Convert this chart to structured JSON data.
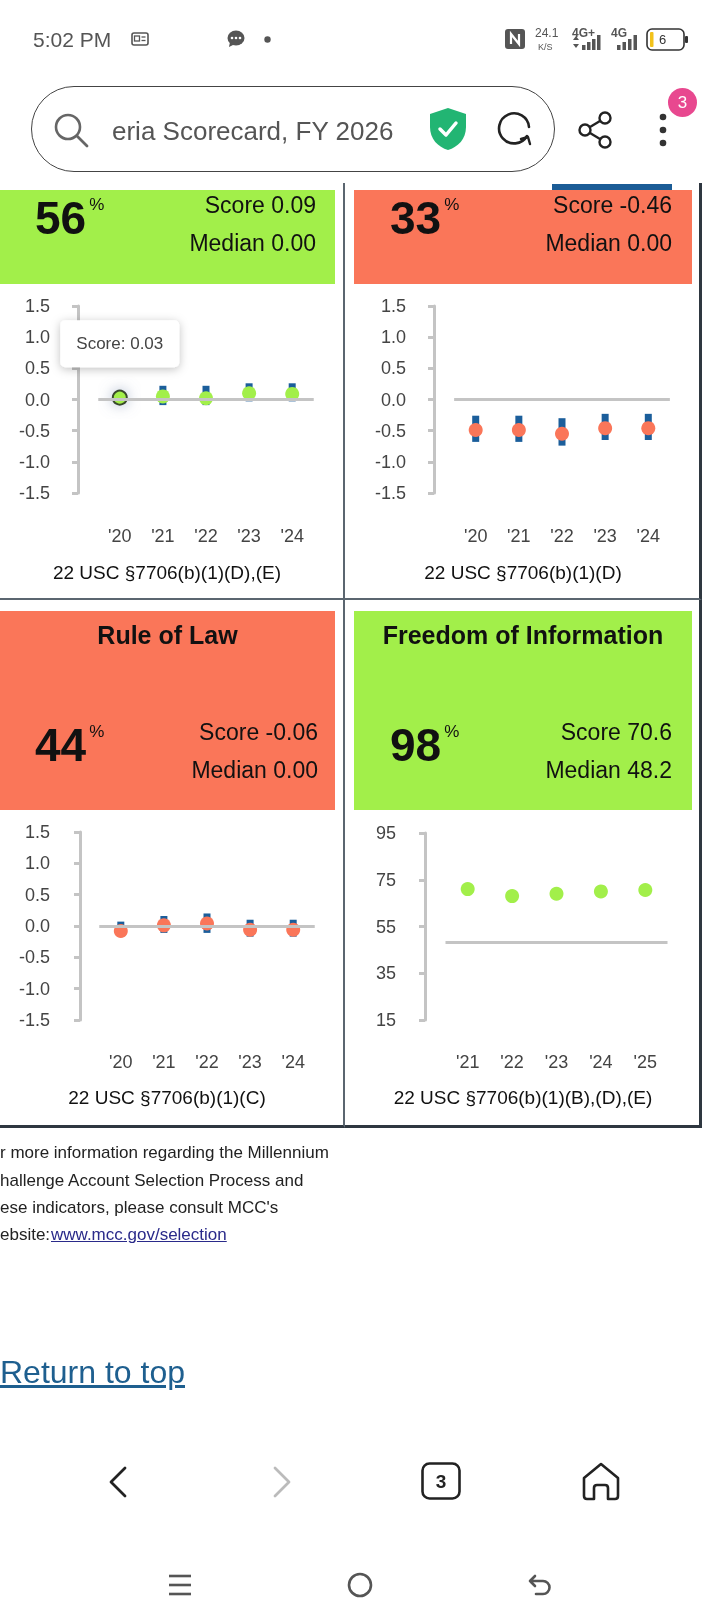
{
  "chart_data": [
    {
      "type": "other",
      "annotations": [
        "5:02 PM",
        "24.1",
        "K/S",
        "4G+",
        "4G",
        "6",
        "eria Scorecard, FY 2026",
        "3"
      ]
    },
    {
      "type": "scatter",
      "categories": [
        "'20",
        "'21",
        "'22",
        "'23",
        "'24"
      ],
      "values": [
        0.03,
        0.05,
        0.02,
        0.1,
        0.09
      ],
      "color": "#a2ef4a",
      "errors": [
        null,
        [
          -0.09,
          0.22
        ],
        [
          -0.09,
          0.22
        ],
        [
          -0.03,
          0.26
        ],
        [
          -0.03,
          0.26
        ]
      ],
      "marker": "circle",
      "ylim": [
        -1.5,
        1.5
      ],
      "yticks": [
        -1.5,
        {
          "value": -1,
          "label": "-1.0"
        },
        -0.5,
        {
          "value": 0,
          "label": "0.0"
        },
        0.5,
        {
          "value": 1,
          "label": "1.0"
        },
        1.5
      ],
      "ref_lines": [
        {
          "axis": "y",
          "value": 0
        }
      ],
      "xlabel": "22 USC §7706(b)(1)(D),(E)",
      "annotations": [
        "56$^{%}$",
        "Score 0.09",
        "Median 0.00",
        {
          "text": "Score: 0.03",
          "x": "'20",
          "y": 0.03
        }
      ]
    },
    {
      "type": "scatter",
      "categories": [
        "'20",
        "'21",
        "'22",
        "'23",
        "'24"
      ],
      "values": [
        -0.49,
        -0.49,
        -0.55,
        -0.46,
        -0.46
      ],
      "color": "#fa7659",
      "errors": [
        [
          -0.68,
          -0.26
        ],
        [
          -0.68,
          -0.26
        ],
        [
          -0.74,
          -0.3
        ],
        [
          -0.65,
          -0.23
        ],
        [
          -0.65,
          -0.23
        ]
      ],
      "marker": "circle",
      "ylim": [
        -1.5,
        1.5
      ],
      "yticks": [
        -1.5,
        {
          "value": -1,
          "label": "-1.0"
        },
        -0.5,
        {
          "value": 0,
          "label": "0.0"
        },
        0.5,
        {
          "value": 1,
          "label": "1.0"
        },
        1.5
      ],
      "ref_lines": [
        {
          "axis": "y",
          "value": 0
        }
      ],
      "xlabel": "22 USC §7706(b)(1)(D)",
      "annotations": [
        "33$^{%}$",
        "Score -0.46",
        "Median 0.00"
      ]
    },
    {
      "type": "scatter",
      "title": "Rule of Law",
      "categories": [
        "'20",
        "'21",
        "'22",
        "'23",
        "'24"
      ],
      "values": [
        -0.08,
        0.01,
        0.04,
        -0.06,
        -0.06
      ],
      "color": "#fa7659",
      "errors": [
        [
          -0.17,
          0.07
        ],
        [
          -0.11,
          0.16
        ],
        [
          -0.11,
          0.2
        ],
        [
          -0.17,
          0.1
        ],
        [
          -0.17,
          0.1
        ]
      ],
      "marker": "circle",
      "ylim": [
        -1.5,
        1.5
      ],
      "yticks": [
        -1.5,
        {
          "value": -1,
          "label": "-1.0"
        },
        -0.5,
        {
          "value": 0,
          "label": "0.0"
        },
        0.5,
        {
          "value": 1,
          "label": "1.0"
        },
        1.5
      ],
      "ref_lines": [
        {
          "axis": "y",
          "value": 0
        }
      ],
      "xlabel": "22 USC §7706(b)(1)(C)",
      "annotations": [
        "44$^{%}$",
        "Score -0.06",
        "Median 0.00"
      ]
    },
    {
      "type": "scatter",
      "title": "Freedom of Information",
      "categories": [
        "'21",
        "'22",
        "'23",
        "'24",
        "'25"
      ],
      "values": [
        71,
        68,
        69,
        70,
        70.6
      ],
      "color": "#a2ef4a",
      "marker": "circle",
      "ylim": [
        15,
        95
      ],
      "yticks": [
        15,
        35,
        55,
        75,
        95
      ],
      "ref_lines": [
        {
          "axis": "y",
          "value": 48.2
        }
      ],
      "xlabel": "22 USC §7706(b)(1)(B),(D),(E)",
      "annotations": [
        "98$^{%}$",
        "Score 70.6",
        "Median 48.2"
      ]
    },
    {
      "type": "other",
      "annotations": [
        "r more information regarding the Millennium",
        "hallenge Account Selection Process and",
        "ese indicators, please consult MCC's",
        "ebsite:",
        "www.mcc.gov/selection",
        "Return to top",
        "3"
      ]
    }
  ]
}
